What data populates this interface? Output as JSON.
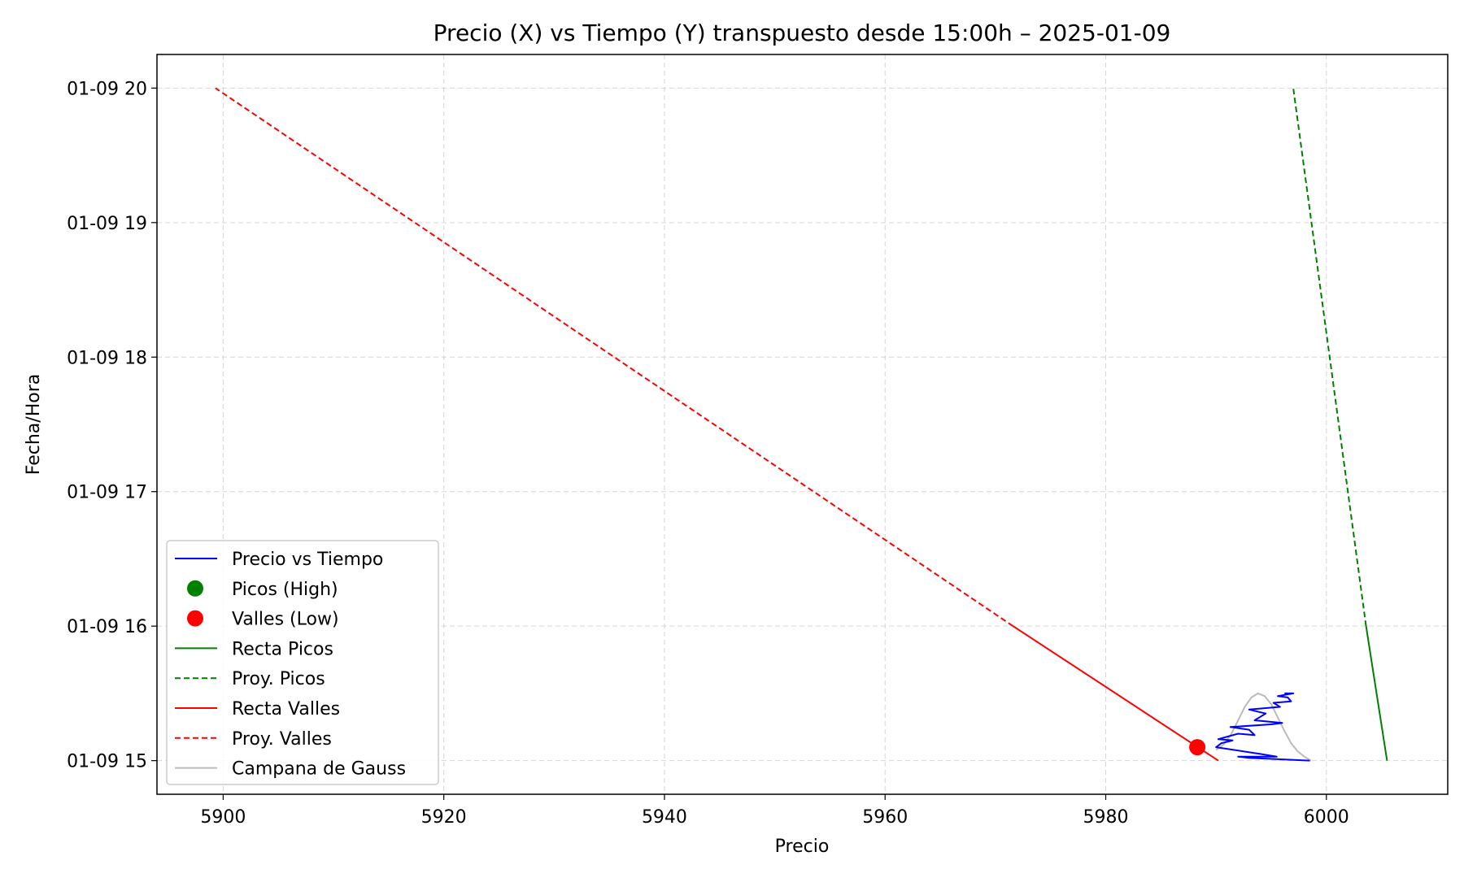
{
  "chart_data": {
    "type": "line",
    "title": "Precio (X) vs Tiempo (Y) transpuesto desde 15:00h – 2025-01-09",
    "xlabel": "Precio",
    "ylabel": "Fecha/Hora",
    "xlim": [
      5894,
      6011
    ],
    "ylim": [
      14.75,
      20.25
    ],
    "x_ticks": [
      {
        "value": 5900,
        "label": "5900"
      },
      {
        "value": 5920,
        "label": "5920"
      },
      {
        "value": 5940,
        "label": "5940"
      },
      {
        "value": 5960,
        "label": "5960"
      },
      {
        "value": 5980,
        "label": "5980"
      },
      {
        "value": 6000,
        "label": "6000"
      }
    ],
    "y_ticks": [
      {
        "value": 15,
        "label": "01-09 15"
      },
      {
        "value": 16,
        "label": "01-09 16"
      },
      {
        "value": 17,
        "label": "01-09 17"
      },
      {
        "value": 18,
        "label": "01-09 18"
      },
      {
        "value": 19,
        "label": "01-09 19"
      },
      {
        "value": 20,
        "label": "01-09 20"
      }
    ],
    "grid": true,
    "legend_position": "lower-left",
    "series": [
      {
        "name": "Precio vs Tiempo",
        "kind": "line",
        "style": "solid",
        "color": "#0000ff",
        "points": [
          [
            5998.5,
            15.0
          ],
          [
            5993,
            15.02
          ],
          [
            5992,
            15.03
          ],
          [
            5995.5,
            15.03
          ],
          [
            5994,
            15.05
          ],
          [
            5990,
            15.1
          ],
          [
            5990.5,
            15.13
          ],
          [
            5991.5,
            15.15
          ],
          [
            5990.2,
            15.16
          ],
          [
            5992,
            15.2
          ],
          [
            5993.5,
            15.19
          ],
          [
            5993,
            15.23
          ],
          [
            5991.3,
            15.25
          ],
          [
            5995,
            15.27
          ],
          [
            5996,
            15.28
          ],
          [
            5993.5,
            15.3
          ],
          [
            5994.5,
            15.35
          ],
          [
            5993,
            15.38
          ],
          [
            5995.8,
            15.4
          ],
          [
            5995.2,
            15.43
          ],
          [
            5996.8,
            15.44
          ],
          [
            5996.5,
            15.47
          ],
          [
            5995.6,
            15.48
          ],
          [
            5997,
            15.5
          ],
          [
            5996.2,
            15.5
          ]
        ]
      },
      {
        "name": "Picos (High)",
        "kind": "scatter",
        "color": "#008000",
        "points": []
      },
      {
        "name": "Valles (Low)",
        "kind": "scatter",
        "color": "#ff0000",
        "points": [
          [
            5988.3,
            15.1
          ]
        ]
      },
      {
        "name": "Recta Picos",
        "kind": "line",
        "style": "solid",
        "color": "#008000",
        "points": [
          [
            6005.5,
            15.0
          ],
          [
            6003.6,
            16.0
          ]
        ]
      },
      {
        "name": "Proy. Picos",
        "kind": "line",
        "style": "dashed",
        "color": "#008000",
        "points": [
          [
            6003.6,
            16.0
          ],
          [
            5997,
            20.0
          ]
        ]
      },
      {
        "name": "Recta Valles",
        "kind": "line",
        "style": "solid",
        "color": "#ff0000",
        "points": [
          [
            5990.2,
            15.0
          ],
          [
            5971.6,
            16.0
          ]
        ]
      },
      {
        "name": "Proy. Valles",
        "kind": "line",
        "style": "dashed",
        "color": "#ff0000",
        "points": [
          [
            5971.6,
            16.0
          ],
          [
            5899.3,
            20.0
          ]
        ]
      },
      {
        "name": "Campana de Gauss",
        "kind": "line",
        "style": "solid",
        "color": "#bbbbbb",
        "points": [
          [
            5990,
            15.08
          ],
          [
            5990.7,
            15.12
          ],
          [
            5991.4,
            15.2
          ],
          [
            5992,
            15.3
          ],
          [
            5992.6,
            15.4
          ],
          [
            5993.2,
            15.47
          ],
          [
            5993.8,
            15.5
          ],
          [
            5994.4,
            15.48
          ],
          [
            5995,
            15.42
          ],
          [
            5995.6,
            15.32
          ],
          [
            5996.2,
            15.22
          ],
          [
            5996.8,
            15.13
          ],
          [
            5997.4,
            15.07
          ],
          [
            5998,
            15.03
          ],
          [
            5998.6,
            15.0
          ]
        ]
      }
    ]
  }
}
